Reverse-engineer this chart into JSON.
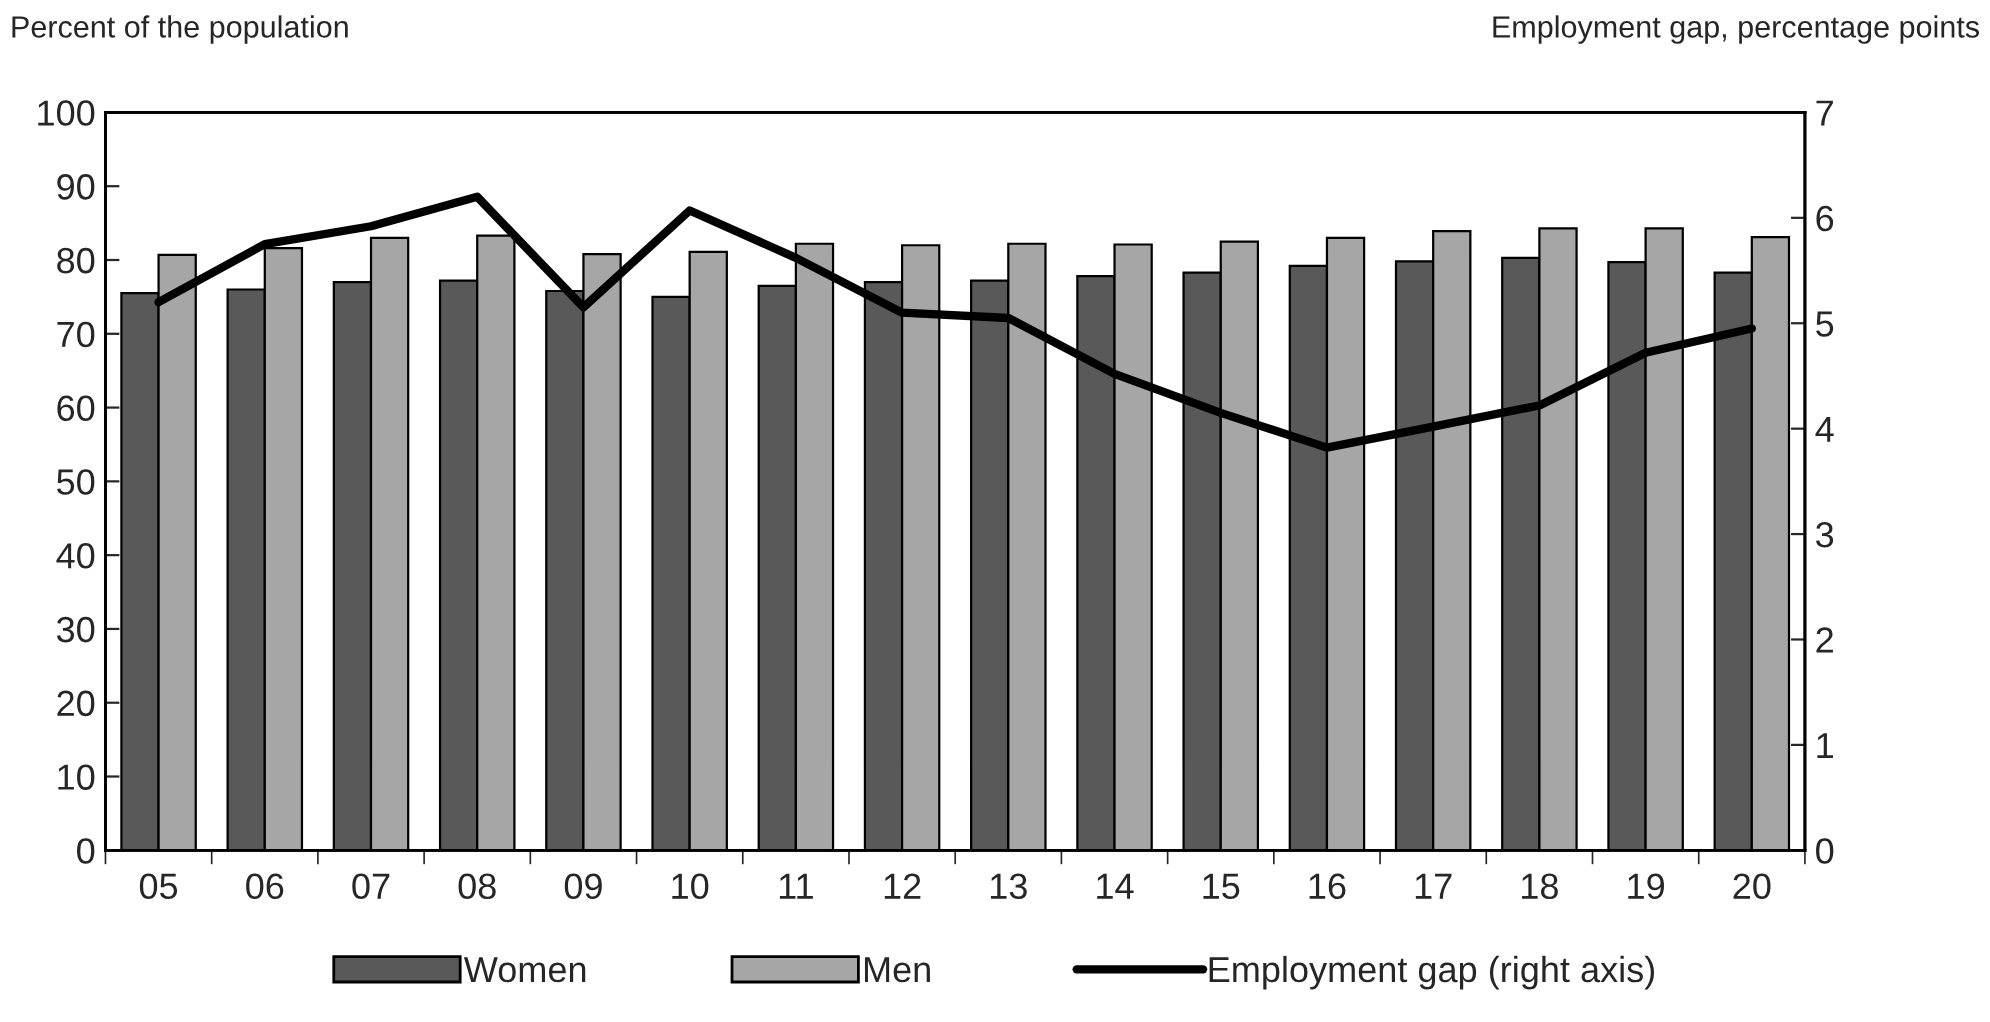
{
  "chart_data": {
    "type": "bar",
    "ylabel": "Percent of the population",
    "y2label": "Employment gap, percentage points",
    "categories": [
      "05",
      "06",
      "07",
      "08",
      "09",
      "10",
      "11",
      "12",
      "13",
      "14",
      "15",
      "16",
      "17",
      "18",
      "19",
      "20"
    ],
    "series": [
      {
        "name": "Women",
        "color": "#595959",
        "values": [
          75.5,
          76,
          77,
          77.2,
          75.8,
          75,
          76.5,
          77,
          77.2,
          77.8,
          78.3,
          79.2,
          79.8,
          80.3,
          79.7,
          78.3
        ]
      },
      {
        "name": "Men",
        "color": "#a6a6a6",
        "values": [
          80.7,
          81.6,
          83,
          83.3,
          80.8,
          81.1,
          82.2,
          82,
          82.2,
          82.1,
          82.5,
          83,
          83.9,
          84.3,
          84.3,
          83.1
        ]
      },
      {
        "name": "Employment gap (right axis)",
        "type": "line",
        "axis": "y2",
        "color": "#000000",
        "values": [
          5.2,
          5.75,
          5.92,
          6.2,
          5.15,
          6.07,
          5.62,
          5.1,
          5.05,
          4.52,
          4.15,
          3.82,
          4.02,
          4.22,
          4.72,
          4.95
        ]
      }
    ],
    "ylim": [
      0,
      100
    ],
    "yticks": [
      0,
      10,
      20,
      30,
      40,
      50,
      60,
      70,
      80,
      90,
      100
    ],
    "y2lim": [
      0,
      7
    ],
    "y2ticks": [
      0,
      1,
      2,
      3,
      4,
      5,
      6,
      7
    ],
    "grid": false,
    "legend": "bottom"
  }
}
